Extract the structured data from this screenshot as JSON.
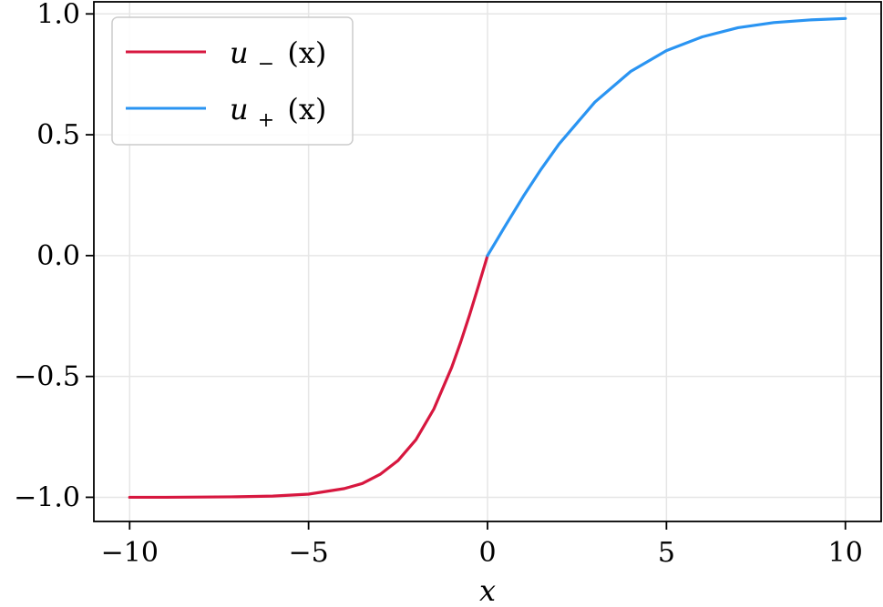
{
  "chart_data": {
    "type": "line",
    "xlabel": "x",
    "ylabel": "",
    "xlim": [
      -11,
      11
    ],
    "ylim": [
      -1.1,
      1.05
    ],
    "xticks": [
      -10,
      -5,
      0,
      5,
      10
    ],
    "xtick_labels": [
      "−10",
      "−5",
      "0",
      "5",
      "10"
    ],
    "yticks": [
      -1.0,
      -0.5,
      0.0,
      0.5,
      1.0
    ],
    "ytick_labels": [
      "−1.0",
      "−0.5",
      "0.0",
      "0.5",
      "1.0"
    ],
    "grid": true,
    "legend_position": "top-left",
    "series": [
      {
        "name": "u_−(x)",
        "legend": {
          "base": "u",
          "sub": "−",
          "arg": "(x)"
        },
        "color": "#d7173f",
        "x": [
          -10,
          -9,
          -8,
          -7,
          -6,
          -5,
          -4,
          -3.5,
          -3,
          -2.5,
          -2,
          -1.5,
          -1,
          -0.75,
          -0.5,
          -0.25,
          0
        ],
        "y": [
          -1.0,
          -1.0,
          -0.999,
          -0.998,
          -0.995,
          -0.987,
          -0.964,
          -0.943,
          -0.905,
          -0.848,
          -0.762,
          -0.635,
          -0.462,
          -0.358,
          -0.245,
          -0.124,
          0.0
        ]
      },
      {
        "name": "u_+(x)",
        "legend": {
          "base": "u",
          "sub": "+",
          "arg": "(x)"
        },
        "color": "#2a94f2",
        "x": [
          0,
          0.25,
          0.5,
          1,
          1.5,
          2,
          3,
          4,
          5,
          6,
          7,
          8,
          9,
          10
        ],
        "y": [
          0.0,
          0.062,
          0.124,
          0.245,
          0.358,
          0.462,
          0.635,
          0.762,
          0.848,
          0.905,
          0.943,
          0.964,
          0.975,
          0.981
        ]
      }
    ]
  }
}
